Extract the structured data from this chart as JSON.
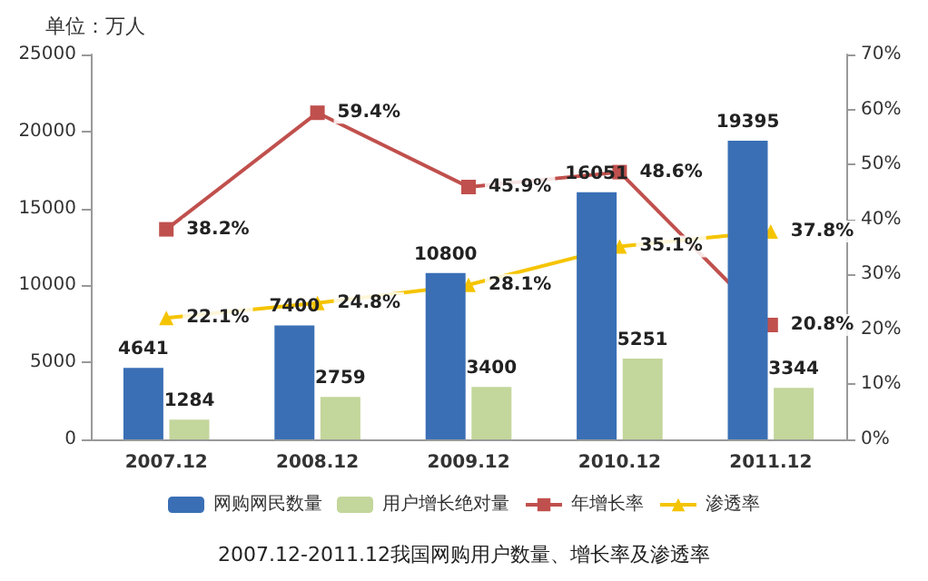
{
  "chart_data": {
    "type": "bar",
    "ylabel": "单位：万人",
    "categories": [
      "2007.12",
      "2008.12",
      "2009.12",
      "2010.12",
      "2011.12"
    ],
    "series": [
      {
        "name": "网购网民数量",
        "color": "#3a6fb5",
        "values": [
          4641,
          7400,
          10800,
          16051,
          19395
        ]
      },
      {
        "name": "用户增长绝对量",
        "color": "#c3d69b",
        "values": [
          1284,
          2759,
          3400,
          5251,
          3344
        ]
      },
      {
        "name": "年增长率",
        "type": "line",
        "axis": "y2",
        "marker": "square",
        "color": "#c0504d",
        "values": [
          38.2,
          59.4,
          45.9,
          48.6,
          20.8
        ],
        "value_labels": [
          "38.2%",
          "59.4%",
          "45.9%",
          "48.6%",
          "20.8%"
        ]
      },
      {
        "name": "渗透率",
        "type": "line",
        "axis": "y2",
        "marker": "triangle",
        "color": "#f5c400",
        "values": [
          22.1,
          24.8,
          28.1,
          35.1,
          37.8
        ],
        "value_labels": [
          "22.1%",
          "24.8%",
          "28.1%",
          "35.1%",
          "37.8%"
        ]
      }
    ],
    "ylim": [
      0,
      25000
    ],
    "yticks": [
      0,
      5000,
      10000,
      15000,
      20000,
      25000
    ],
    "y2lim": [
      0,
      70
    ],
    "y2ticks": [
      {
        "value": 0,
        "label": "0%"
      },
      {
        "value": 10,
        "label": "10%"
      },
      {
        "value": 20,
        "label": "20%"
      },
      {
        "value": 30,
        "label": "30%"
      },
      {
        "value": 40,
        "label": "40%"
      },
      {
        "value": 50,
        "label": "50%"
      },
      {
        "value": 60,
        "label": "60%"
      },
      {
        "value": 70,
        "label": "70%"
      }
    ],
    "data_labels": true,
    "legend": "bottom",
    "grid": false,
    "annotations": [
      "2007.12-2011.12我国网购用户数量、增长率及渗透率"
    ]
  }
}
